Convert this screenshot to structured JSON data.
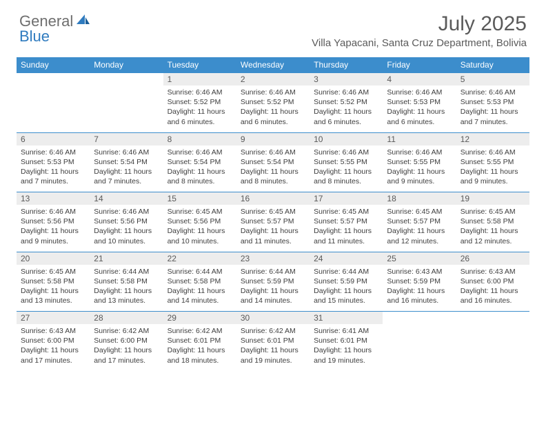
{
  "logo": {
    "general": "General",
    "blue": "Blue"
  },
  "month": "July 2025",
  "location": "Villa Yapacani, Santa Cruz Department, Bolivia",
  "colors": {
    "header_bg": "#3c8dcc",
    "header_text": "#ffffff",
    "daynum_bg": "#ededed",
    "border": "#3c8dcc",
    "body_text": "#3d3d3d",
    "title_text": "#5a5a5a",
    "logo_gray": "#6e6e6e",
    "logo_blue": "#2f7bbf"
  },
  "weekdays": [
    "Sunday",
    "Monday",
    "Tuesday",
    "Wednesday",
    "Thursday",
    "Friday",
    "Saturday"
  ],
  "weeks": [
    [
      null,
      null,
      {
        "n": "1",
        "sr": "Sunrise: 6:46 AM",
        "ss": "Sunset: 5:52 PM",
        "dl": "Daylight: 11 hours and 6 minutes."
      },
      {
        "n": "2",
        "sr": "Sunrise: 6:46 AM",
        "ss": "Sunset: 5:52 PM",
        "dl": "Daylight: 11 hours and 6 minutes."
      },
      {
        "n": "3",
        "sr": "Sunrise: 6:46 AM",
        "ss": "Sunset: 5:52 PM",
        "dl": "Daylight: 11 hours and 6 minutes."
      },
      {
        "n": "4",
        "sr": "Sunrise: 6:46 AM",
        "ss": "Sunset: 5:53 PM",
        "dl": "Daylight: 11 hours and 6 minutes."
      },
      {
        "n": "5",
        "sr": "Sunrise: 6:46 AM",
        "ss": "Sunset: 5:53 PM",
        "dl": "Daylight: 11 hours and 7 minutes."
      }
    ],
    [
      {
        "n": "6",
        "sr": "Sunrise: 6:46 AM",
        "ss": "Sunset: 5:53 PM",
        "dl": "Daylight: 11 hours and 7 minutes."
      },
      {
        "n": "7",
        "sr": "Sunrise: 6:46 AM",
        "ss": "Sunset: 5:54 PM",
        "dl": "Daylight: 11 hours and 7 minutes."
      },
      {
        "n": "8",
        "sr": "Sunrise: 6:46 AM",
        "ss": "Sunset: 5:54 PM",
        "dl": "Daylight: 11 hours and 8 minutes."
      },
      {
        "n": "9",
        "sr": "Sunrise: 6:46 AM",
        "ss": "Sunset: 5:54 PM",
        "dl": "Daylight: 11 hours and 8 minutes."
      },
      {
        "n": "10",
        "sr": "Sunrise: 6:46 AM",
        "ss": "Sunset: 5:55 PM",
        "dl": "Daylight: 11 hours and 8 minutes."
      },
      {
        "n": "11",
        "sr": "Sunrise: 6:46 AM",
        "ss": "Sunset: 5:55 PM",
        "dl": "Daylight: 11 hours and 9 minutes."
      },
      {
        "n": "12",
        "sr": "Sunrise: 6:46 AM",
        "ss": "Sunset: 5:55 PM",
        "dl": "Daylight: 11 hours and 9 minutes."
      }
    ],
    [
      {
        "n": "13",
        "sr": "Sunrise: 6:46 AM",
        "ss": "Sunset: 5:56 PM",
        "dl": "Daylight: 11 hours and 9 minutes."
      },
      {
        "n": "14",
        "sr": "Sunrise: 6:46 AM",
        "ss": "Sunset: 5:56 PM",
        "dl": "Daylight: 11 hours and 10 minutes."
      },
      {
        "n": "15",
        "sr": "Sunrise: 6:45 AM",
        "ss": "Sunset: 5:56 PM",
        "dl": "Daylight: 11 hours and 10 minutes."
      },
      {
        "n": "16",
        "sr": "Sunrise: 6:45 AM",
        "ss": "Sunset: 5:57 PM",
        "dl": "Daylight: 11 hours and 11 minutes."
      },
      {
        "n": "17",
        "sr": "Sunrise: 6:45 AM",
        "ss": "Sunset: 5:57 PM",
        "dl": "Daylight: 11 hours and 11 minutes."
      },
      {
        "n": "18",
        "sr": "Sunrise: 6:45 AM",
        "ss": "Sunset: 5:57 PM",
        "dl": "Daylight: 11 hours and 12 minutes."
      },
      {
        "n": "19",
        "sr": "Sunrise: 6:45 AM",
        "ss": "Sunset: 5:58 PM",
        "dl": "Daylight: 11 hours and 12 minutes."
      }
    ],
    [
      {
        "n": "20",
        "sr": "Sunrise: 6:45 AM",
        "ss": "Sunset: 5:58 PM",
        "dl": "Daylight: 11 hours and 13 minutes."
      },
      {
        "n": "21",
        "sr": "Sunrise: 6:44 AM",
        "ss": "Sunset: 5:58 PM",
        "dl": "Daylight: 11 hours and 13 minutes."
      },
      {
        "n": "22",
        "sr": "Sunrise: 6:44 AM",
        "ss": "Sunset: 5:58 PM",
        "dl": "Daylight: 11 hours and 14 minutes."
      },
      {
        "n": "23",
        "sr": "Sunrise: 6:44 AM",
        "ss": "Sunset: 5:59 PM",
        "dl": "Daylight: 11 hours and 14 minutes."
      },
      {
        "n": "24",
        "sr": "Sunrise: 6:44 AM",
        "ss": "Sunset: 5:59 PM",
        "dl": "Daylight: 11 hours and 15 minutes."
      },
      {
        "n": "25",
        "sr": "Sunrise: 6:43 AM",
        "ss": "Sunset: 5:59 PM",
        "dl": "Daylight: 11 hours and 16 minutes."
      },
      {
        "n": "26",
        "sr": "Sunrise: 6:43 AM",
        "ss": "Sunset: 6:00 PM",
        "dl": "Daylight: 11 hours and 16 minutes."
      }
    ],
    [
      {
        "n": "27",
        "sr": "Sunrise: 6:43 AM",
        "ss": "Sunset: 6:00 PM",
        "dl": "Daylight: 11 hours and 17 minutes."
      },
      {
        "n": "28",
        "sr": "Sunrise: 6:42 AM",
        "ss": "Sunset: 6:00 PM",
        "dl": "Daylight: 11 hours and 17 minutes."
      },
      {
        "n": "29",
        "sr": "Sunrise: 6:42 AM",
        "ss": "Sunset: 6:01 PM",
        "dl": "Daylight: 11 hours and 18 minutes."
      },
      {
        "n": "30",
        "sr": "Sunrise: 6:42 AM",
        "ss": "Sunset: 6:01 PM",
        "dl": "Daylight: 11 hours and 19 minutes."
      },
      {
        "n": "31",
        "sr": "Sunrise: 6:41 AM",
        "ss": "Sunset: 6:01 PM",
        "dl": "Daylight: 11 hours and 19 minutes."
      },
      null,
      null
    ]
  ]
}
